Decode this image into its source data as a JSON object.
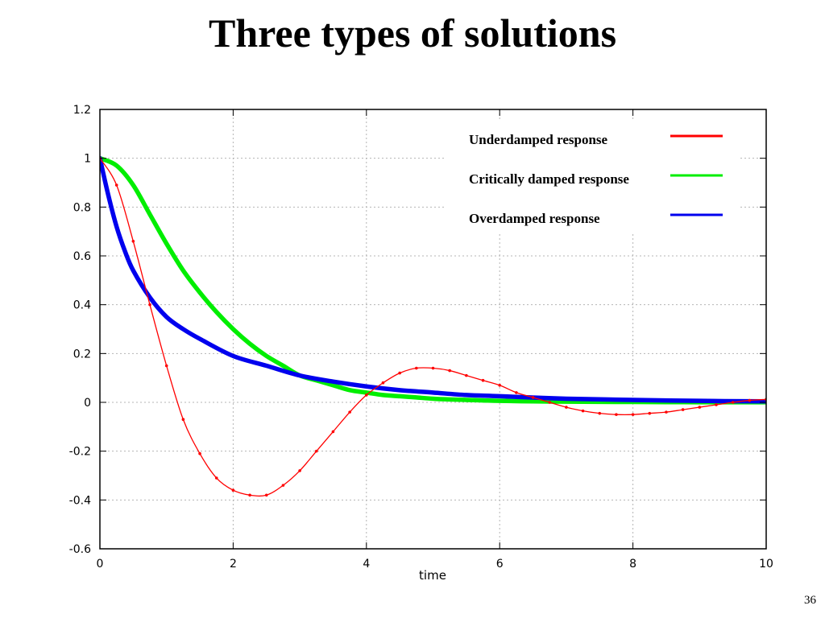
{
  "slide": {
    "title": "Three types of solutions",
    "page_number": "36"
  },
  "chart_data": {
    "type": "line",
    "title": "",
    "xlabel": "time",
    "ylabel": "",
    "xlim": [
      0,
      10
    ],
    "ylim": [
      -0.6,
      1.2
    ],
    "x_ticks": [
      0,
      2,
      4,
      6,
      8,
      10
    ],
    "y_ticks": [
      -0.6,
      -0.4,
      -0.2,
      0,
      0.2,
      0.4,
      0.6,
      0.8,
      1,
      1.2
    ],
    "grid": true,
    "legend_position": "top-right",
    "series": [
      {
        "name": "Underdamped response",
        "color": "#ff0000",
        "marker": "dot",
        "x": [
          0,
          0.25,
          0.5,
          0.75,
          1,
          1.25,
          1.5,
          1.75,
          2,
          2.25,
          2.5,
          2.75,
          3,
          3.25,
          3.5,
          3.75,
          4,
          4.25,
          4.5,
          4.75,
          5,
          5.25,
          5.5,
          5.75,
          6,
          6.25,
          6.5,
          6.75,
          7,
          7.25,
          7.5,
          7.75,
          8,
          8.25,
          8.5,
          8.75,
          9,
          9.25,
          9.5,
          9.75,
          10
        ],
        "y": [
          1.0,
          0.89,
          0.66,
          0.4,
          0.15,
          -0.07,
          -0.21,
          -0.31,
          -0.36,
          -0.38,
          -0.38,
          -0.34,
          -0.28,
          -0.2,
          -0.12,
          -0.04,
          0.03,
          0.08,
          0.12,
          0.14,
          0.14,
          0.13,
          0.11,
          0.09,
          0.07,
          0.04,
          0.02,
          0.0,
          -0.02,
          -0.035,
          -0.045,
          -0.05,
          -0.05,
          -0.045,
          -0.04,
          -0.03,
          -0.02,
          -0.01,
          0.0,
          0.008,
          0.012
        ]
      },
      {
        "name": "Critically damped response",
        "color": "#00ee00",
        "marker": "none",
        "x": [
          0,
          0.25,
          0.5,
          0.75,
          1,
          1.25,
          1.5,
          1.75,
          2,
          2.25,
          2.5,
          2.75,
          3,
          3.25,
          3.5,
          3.75,
          4,
          4.25,
          4.5,
          4.75,
          5,
          5.25,
          5.5,
          5.75,
          6,
          6.5,
          7,
          7.5,
          8,
          8.5,
          9,
          9.5,
          10
        ],
        "y": [
          1.0,
          0.97,
          0.89,
          0.77,
          0.65,
          0.54,
          0.45,
          0.37,
          0.3,
          0.24,
          0.19,
          0.15,
          0.11,
          0.09,
          0.07,
          0.05,
          0.04,
          0.03,
          0.025,
          0.02,
          0.015,
          0.012,
          0.01,
          0.008,
          0.006,
          0.004,
          0.003,
          0.002,
          0.0015,
          0.001,
          0.0006,
          0.0004,
          0.0003
        ]
      },
      {
        "name": "Overdamped response",
        "color": "#0000ee",
        "marker": "none",
        "x": [
          0,
          0.125,
          0.25,
          0.375,
          0.5,
          0.75,
          1,
          1.25,
          1.5,
          2,
          2.5,
          3,
          3.5,
          4,
          4.5,
          5,
          5.5,
          6,
          7,
          8,
          9,
          10
        ],
        "y": [
          1.0,
          0.85,
          0.72,
          0.62,
          0.54,
          0.43,
          0.35,
          0.3,
          0.26,
          0.19,
          0.15,
          0.11,
          0.085,
          0.065,
          0.05,
          0.04,
          0.03,
          0.025,
          0.015,
          0.01,
          0.006,
          0.004
        ]
      }
    ]
  }
}
